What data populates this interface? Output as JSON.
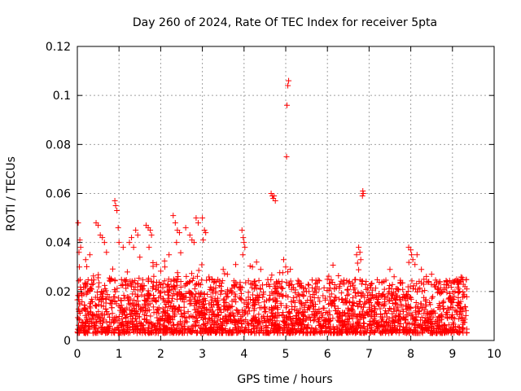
{
  "chart_data": {
    "type": "scatter",
    "title": "Day 260 of 2024, Rate Of TEC Index for receiver 5pta",
    "xlabel": "GPS time / hours",
    "ylabel": "ROTI / TECUs",
    "xlim": [
      0,
      10
    ],
    "ylim": [
      0,
      0.12
    ],
    "xticks": [
      "0",
      "1",
      "2",
      "3",
      "4",
      "5",
      "6",
      "7",
      "8",
      "9",
      "10"
    ],
    "yticks": [
      "0",
      "0.02",
      "0.04",
      "0.06",
      "0.08",
      "0.1",
      "0.12"
    ],
    "grid": true,
    "marker": "+",
    "color": "#ff0000",
    "data_extent_hours": [
      0,
      9.35
    ],
    "baseline_description": "dense band mostly between 0.003 and 0.03 TECU across 0–9.35 h",
    "series": [
      {
        "name": "ROTI",
        "points": [
          [
            0.02,
            0.048
          ],
          [
            0.04,
            0.036
          ],
          [
            0.06,
            0.041
          ],
          [
            0.08,
            0.038
          ],
          [
            0.05,
            0.03
          ],
          [
            0.45,
            0.048
          ],
          [
            0.5,
            0.047
          ],
          [
            0.55,
            0.043
          ],
          [
            0.6,
            0.042
          ],
          [
            0.65,
            0.04
          ],
          [
            0.9,
            0.057
          ],
          [
            0.92,
            0.055
          ],
          [
            0.95,
            0.053
          ],
          [
            0.98,
            0.046
          ],
          [
            1.0,
            0.04
          ],
          [
            1.25,
            0.04
          ],
          [
            1.3,
            0.042
          ],
          [
            1.35,
            0.038
          ],
          [
            1.4,
            0.045
          ],
          [
            1.45,
            0.043
          ],
          [
            1.65,
            0.047
          ],
          [
            1.7,
            0.046
          ],
          [
            1.75,
            0.045
          ],
          [
            1.78,
            0.043
          ],
          [
            1.72,
            0.038
          ],
          [
            2.3,
            0.051
          ],
          [
            2.35,
            0.048
          ],
          [
            2.4,
            0.045
          ],
          [
            2.45,
            0.044
          ],
          [
            2.38,
            0.04
          ],
          [
            2.6,
            0.046
          ],
          [
            2.7,
            0.043
          ],
          [
            2.75,
            0.041
          ],
          [
            2.8,
            0.04
          ],
          [
            2.85,
            0.05
          ],
          [
            2.9,
            0.048
          ],
          [
            3.0,
            0.05
          ],
          [
            3.05,
            0.045
          ],
          [
            3.08,
            0.044
          ],
          [
            3.02,
            0.041
          ],
          [
            3.95,
            0.045
          ],
          [
            3.98,
            0.042
          ],
          [
            4.0,
            0.04
          ],
          [
            4.02,
            0.038
          ],
          [
            3.97,
            0.035
          ],
          [
            4.65,
            0.06
          ],
          [
            4.68,
            0.059
          ],
          [
            4.72,
            0.059
          ],
          [
            4.75,
            0.057
          ],
          [
            4.7,
            0.058
          ],
          [
            5.02,
            0.075
          ],
          [
            5.03,
            0.096
          ],
          [
            5.05,
            0.104
          ],
          [
            5.07,
            0.106
          ],
          [
            4.95,
            0.033
          ],
          [
            5.0,
            0.03
          ],
          [
            5.05,
            0.028
          ],
          [
            6.75,
            0.038
          ],
          [
            6.78,
            0.036
          ],
          [
            6.7,
            0.035
          ],
          [
            6.8,
            0.033
          ],
          [
            6.85,
            0.061
          ],
          [
            6.86,
            0.06
          ],
          [
            6.84,
            0.059
          ],
          [
            7.95,
            0.038
          ],
          [
            8.0,
            0.037
          ],
          [
            8.02,
            0.035
          ],
          [
            8.05,
            0.033
          ],
          [
            8.1,
            0.031
          ],
          [
            8.15,
            0.035
          ],
          [
            7.5,
            0.029
          ],
          [
            7.6,
            0.026
          ],
          [
            8.6,
            0.022
          ],
          [
            9.1,
            0.025
          ],
          [
            9.2,
            0.024
          ],
          [
            9.3,
            0.022
          ],
          [
            5.5,
            0.02
          ],
          [
            5.8,
            0.021
          ],
          [
            6.1,
            0.019
          ],
          [
            6.4,
            0.023
          ],
          [
            3.5,
            0.029
          ],
          [
            3.6,
            0.027
          ],
          [
            3.8,
            0.031
          ],
          [
            4.2,
            0.03
          ],
          [
            4.3,
            0.032
          ],
          [
            4.4,
            0.029
          ],
          [
            0.2,
            0.033
          ],
          [
            0.3,
            0.035
          ],
          [
            0.7,
            0.036
          ],
          [
            1.1,
            0.038
          ],
          [
            1.5,
            0.034
          ],
          [
            1.9,
            0.031
          ],
          [
            2.1,
            0.03
          ],
          [
            2.2,
            0.035
          ]
        ]
      }
    ]
  }
}
